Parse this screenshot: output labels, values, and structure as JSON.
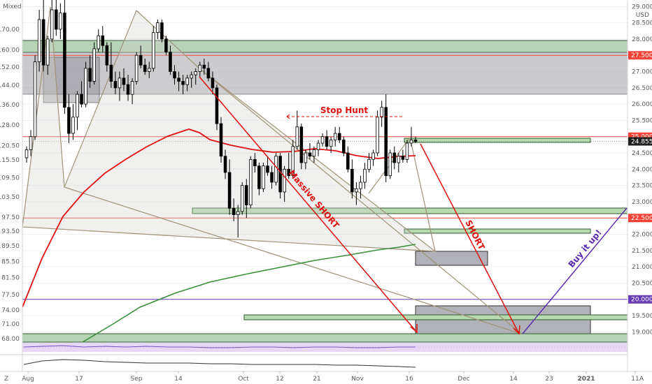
{
  "header": {
    "left_label": "Mixed",
    "right_label": "USD"
  },
  "chart_data": {
    "type": "candlestick",
    "left_axis_ticks": [
      "170.00",
      "160.00",
      "152.00",
      "144.00",
      "136.00",
      "128.00",
      "120.50",
      "115.50",
      "109.50",
      "103.50",
      "97.50",
      "93.50",
      "89.50",
      "85.50",
      "81.50",
      "77.50",
      "74.00",
      "71.00",
      "68.00"
    ],
    "right_axis_ticks": [
      "29.000",
      "28.500",
      "28.000",
      "27.500",
      "27.000",
      "26.500",
      "26.000",
      "25.500",
      "25.000",
      "24.500",
      "24.000",
      "23.500",
      "23.000",
      "22.500",
      "22.000",
      "21.500",
      "21.000",
      "20.500",
      "20.000",
      "19.500",
      "19.000"
    ],
    "right_axis_ylim": [
      18.75,
      29.2
    ],
    "x_ticks": [
      "Aug",
      "17",
      "Sep",
      "14",
      "Oct",
      "12",
      "21",
      "Nov",
      "16",
      "Dec",
      "14",
      "23",
      "2021",
      "11"
    ],
    "right_bottom_label": "A",
    "left_bottom_label": "Z",
    "price_badges": [
      {
        "label": "27.500",
        "color": "#f44336"
      },
      {
        "label": "25.000",
        "color": "#f44336"
      },
      {
        "label": "24.855",
        "color": "#1e1e1e"
      },
      {
        "label": "22.500",
        "color": "#f44336"
      },
      {
        "label": "20.000",
        "color": "#673ab7"
      }
    ],
    "horizontal_lines": [
      {
        "value": 27.5,
        "color": "#f44336"
      },
      {
        "value": 25.0,
        "color": "#f44336"
      },
      {
        "value": 22.5,
        "color": "#f44336"
      },
      {
        "value": 20.0,
        "color": "#673ab7"
      }
    ],
    "candles": [
      {
        "o": 24.35,
        "h": 24.7,
        "l": 24.2,
        "c": 24.6
      },
      {
        "o": 24.6,
        "h": 25.2,
        "l": 24.4,
        "c": 25.0
      },
      {
        "o": 25.0,
        "h": 27.5,
        "l": 24.9,
        "c": 27.3
      },
      {
        "o": 27.3,
        "h": 28.9,
        "l": 27.0,
        "c": 28.6
      },
      {
        "o": 28.6,
        "h": 29.3,
        "l": 27.0,
        "c": 27.2
      },
      {
        "o": 27.2,
        "h": 28.1,
        "l": 26.9,
        "c": 28.0
      },
      {
        "o": 28.0,
        "h": 29.2,
        "l": 27.9,
        "c": 28.9
      },
      {
        "o": 28.9,
        "h": 29.3,
        "l": 28.1,
        "c": 28.3
      },
      {
        "o": 28.3,
        "h": 29.1,
        "l": 28.0,
        "c": 28.8
      },
      {
        "o": 28.8,
        "h": 29.2,
        "l": 25.7,
        "c": 25.9
      },
      {
        "o": 25.9,
        "h": 26.3,
        "l": 24.8,
        "c": 25.1
      },
      {
        "o": 25.1,
        "h": 26.0,
        "l": 24.9,
        "c": 25.6
      },
      {
        "o": 25.6,
        "h": 26.4,
        "l": 25.2,
        "c": 26.3
      },
      {
        "o": 26.3,
        "h": 26.7,
        "l": 25.9,
        "c": 26.0
      },
      {
        "o": 26.0,
        "h": 27.3,
        "l": 25.9,
        "c": 27.1
      },
      {
        "o": 27.1,
        "h": 27.5,
        "l": 26.5,
        "c": 26.7
      },
      {
        "o": 26.7,
        "h": 27.9,
        "l": 26.6,
        "c": 27.7
      },
      {
        "o": 27.7,
        "h": 28.3,
        "l": 27.6,
        "c": 28.1
      },
      {
        "o": 28.1,
        "h": 28.4,
        "l": 27.6,
        "c": 27.8
      },
      {
        "o": 27.8,
        "h": 27.9,
        "l": 27.0,
        "c": 27.2
      },
      {
        "o": 27.2,
        "h": 27.9,
        "l": 26.5,
        "c": 26.7
      },
      {
        "o": 26.7,
        "h": 27.0,
        "l": 26.3,
        "c": 26.5
      },
      {
        "o": 26.5,
        "h": 27.0,
        "l": 26.1,
        "c": 26.8
      },
      {
        "o": 26.8,
        "h": 27.1,
        "l": 26.4,
        "c": 26.6
      },
      {
        "o": 26.6,
        "h": 26.9,
        "l": 26.1,
        "c": 26.3
      },
      {
        "o": 26.3,
        "h": 26.8,
        "l": 26.0,
        "c": 26.7
      },
      {
        "o": 26.7,
        "h": 27.6,
        "l": 26.6,
        "c": 27.5
      },
      {
        "o": 27.5,
        "h": 27.8,
        "l": 27.1,
        "c": 27.2
      },
      {
        "o": 27.2,
        "h": 27.4,
        "l": 26.9,
        "c": 27.0
      },
      {
        "o": 27.0,
        "h": 27.3,
        "l": 26.8,
        "c": 27.1
      },
      {
        "o": 27.1,
        "h": 28.4,
        "l": 27.0,
        "c": 28.2
      },
      {
        "o": 28.2,
        "h": 28.6,
        "l": 28.0,
        "c": 28.5
      },
      {
        "o": 28.5,
        "h": 28.6,
        "l": 27.9,
        "c": 28.0
      },
      {
        "o": 28.0,
        "h": 28.1,
        "l": 27.5,
        "c": 27.6
      },
      {
        "o": 27.6,
        "h": 27.8,
        "l": 26.9,
        "c": 27.0
      },
      {
        "o": 27.0,
        "h": 27.2,
        "l": 26.6,
        "c": 26.8
      },
      {
        "o": 26.8,
        "h": 27.0,
        "l": 26.4,
        "c": 26.7
      },
      {
        "o": 26.7,
        "h": 26.9,
        "l": 26.3,
        "c": 26.6
      },
      {
        "o": 26.6,
        "h": 26.9,
        "l": 26.4,
        "c": 26.8
      },
      {
        "o": 26.8,
        "h": 27.0,
        "l": 26.5,
        "c": 26.9
      },
      {
        "o": 26.9,
        "h": 27.1,
        "l": 26.6,
        "c": 27.0
      },
      {
        "o": 27.0,
        "h": 27.3,
        "l": 26.8,
        "c": 27.2
      },
      {
        "o": 27.2,
        "h": 27.4,
        "l": 26.9,
        "c": 27.1
      },
      {
        "o": 27.1,
        "h": 27.3,
        "l": 26.7,
        "c": 26.8
      },
      {
        "o": 26.8,
        "h": 27.0,
        "l": 26.3,
        "c": 26.5
      },
      {
        "o": 26.5,
        "h": 26.6,
        "l": 25.2,
        "c": 25.4
      },
      {
        "o": 25.4,
        "h": 25.6,
        "l": 24.2,
        "c": 24.4
      },
      {
        "o": 24.4,
        "h": 24.6,
        "l": 23.7,
        "c": 23.9
      },
      {
        "o": 23.9,
        "h": 24.3,
        "l": 22.6,
        "c": 22.8
      },
      {
        "o": 22.8,
        "h": 23.1,
        "l": 22.4,
        "c": 22.6
      },
      {
        "o": 22.6,
        "h": 22.9,
        "l": 21.9,
        "c": 22.7
      },
      {
        "o": 22.7,
        "h": 23.6,
        "l": 22.6,
        "c": 23.5
      },
      {
        "o": 23.5,
        "h": 23.7,
        "l": 22.5,
        "c": 22.9
      },
      {
        "o": 22.9,
        "h": 24.4,
        "l": 22.8,
        "c": 24.3
      },
      {
        "o": 24.3,
        "h": 24.5,
        "l": 23.9,
        "c": 24.1
      },
      {
        "o": 24.1,
        "h": 24.2,
        "l": 23.2,
        "c": 23.4
      },
      {
        "o": 23.4,
        "h": 24.2,
        "l": 23.3,
        "c": 24.1
      },
      {
        "o": 24.1,
        "h": 24.4,
        "l": 23.8,
        "c": 23.9
      },
      {
        "o": 23.9,
        "h": 24.1,
        "l": 23.4,
        "c": 23.6
      },
      {
        "o": 23.6,
        "h": 24.5,
        "l": 23.5,
        "c": 24.4
      },
      {
        "o": 24.4,
        "h": 24.5,
        "l": 23.1,
        "c": 23.3
      },
      {
        "o": 23.3,
        "h": 24.1,
        "l": 23.0,
        "c": 24.0
      },
      {
        "o": 24.0,
        "h": 24.5,
        "l": 23.7,
        "c": 23.8
      },
      {
        "o": 23.8,
        "h": 24.9,
        "l": 23.7,
        "c": 24.7
      },
      {
        "o": 24.7,
        "h": 25.8,
        "l": 24.6,
        "c": 25.3
      },
      {
        "o": 25.3,
        "h": 25.4,
        "l": 24.0,
        "c": 24.2
      },
      {
        "o": 24.2,
        "h": 24.6,
        "l": 24.0,
        "c": 24.5
      },
      {
        "o": 24.5,
        "h": 24.8,
        "l": 24.3,
        "c": 24.4
      },
      {
        "o": 24.4,
        "h": 24.7,
        "l": 24.2,
        "c": 24.6
      },
      {
        "o": 24.6,
        "h": 24.9,
        "l": 24.4,
        "c": 24.8
      },
      {
        "o": 24.8,
        "h": 25.1,
        "l": 24.7,
        "c": 25.0
      },
      {
        "o": 25.0,
        "h": 25.2,
        "l": 24.6,
        "c": 24.7
      },
      {
        "o": 24.7,
        "h": 25.0,
        "l": 24.5,
        "c": 24.9
      },
      {
        "o": 24.9,
        "h": 25.3,
        "l": 24.7,
        "c": 25.1
      },
      {
        "o": 25.1,
        "h": 25.3,
        "l": 24.8,
        "c": 24.9
      },
      {
        "o": 24.9,
        "h": 25.0,
        "l": 24.4,
        "c": 24.5
      },
      {
        "o": 24.5,
        "h": 24.7,
        "l": 23.9,
        "c": 24.0
      },
      {
        "o": 24.0,
        "h": 24.3,
        "l": 23.1,
        "c": 23.3
      },
      {
        "o": 23.3,
        "h": 23.6,
        "l": 22.9,
        "c": 23.4
      },
      {
        "o": 23.4,
        "h": 23.8,
        "l": 23.1,
        "c": 23.6
      },
      {
        "o": 23.6,
        "h": 24.2,
        "l": 23.4,
        "c": 24.0
      },
      {
        "o": 24.0,
        "h": 24.5,
        "l": 23.9,
        "c": 24.3
      },
      {
        "o": 24.3,
        "h": 24.6,
        "l": 24.1,
        "c": 24.5
      },
      {
        "o": 24.5,
        "h": 25.8,
        "l": 24.4,
        "c": 25.6
      },
      {
        "o": 25.6,
        "h": 26.1,
        "l": 25.3,
        "c": 25.9
      },
      {
        "o": 25.9,
        "h": 26.3,
        "l": 23.6,
        "c": 23.8
      },
      {
        "o": 23.8,
        "h": 24.6,
        "l": 23.7,
        "c": 24.5
      },
      {
        "o": 24.5,
        "h": 24.7,
        "l": 24.0,
        "c": 24.2
      },
      {
        "o": 24.2,
        "h": 24.5,
        "l": 23.9,
        "c": 24.4
      },
      {
        "o": 24.4,
        "h": 24.6,
        "l": 24.2,
        "c": 24.3
      },
      {
        "o": 24.3,
        "h": 24.9,
        "l": 24.2,
        "c": 24.8
      },
      {
        "o": 24.8,
        "h": 25.3,
        "l": 24.7,
        "c": 24.9
      },
      {
        "o": 24.9,
        "h": 25.0,
        "l": 24.8,
        "c": 24.855
      }
    ],
    "annotations": {
      "stop_hunt": "Stop Hunt",
      "massive_short": "Massive SHORT",
      "short": "SHORT",
      "buy_it_up": "Buy it up!"
    },
    "grid": true,
    "indicator_panels": 2
  }
}
